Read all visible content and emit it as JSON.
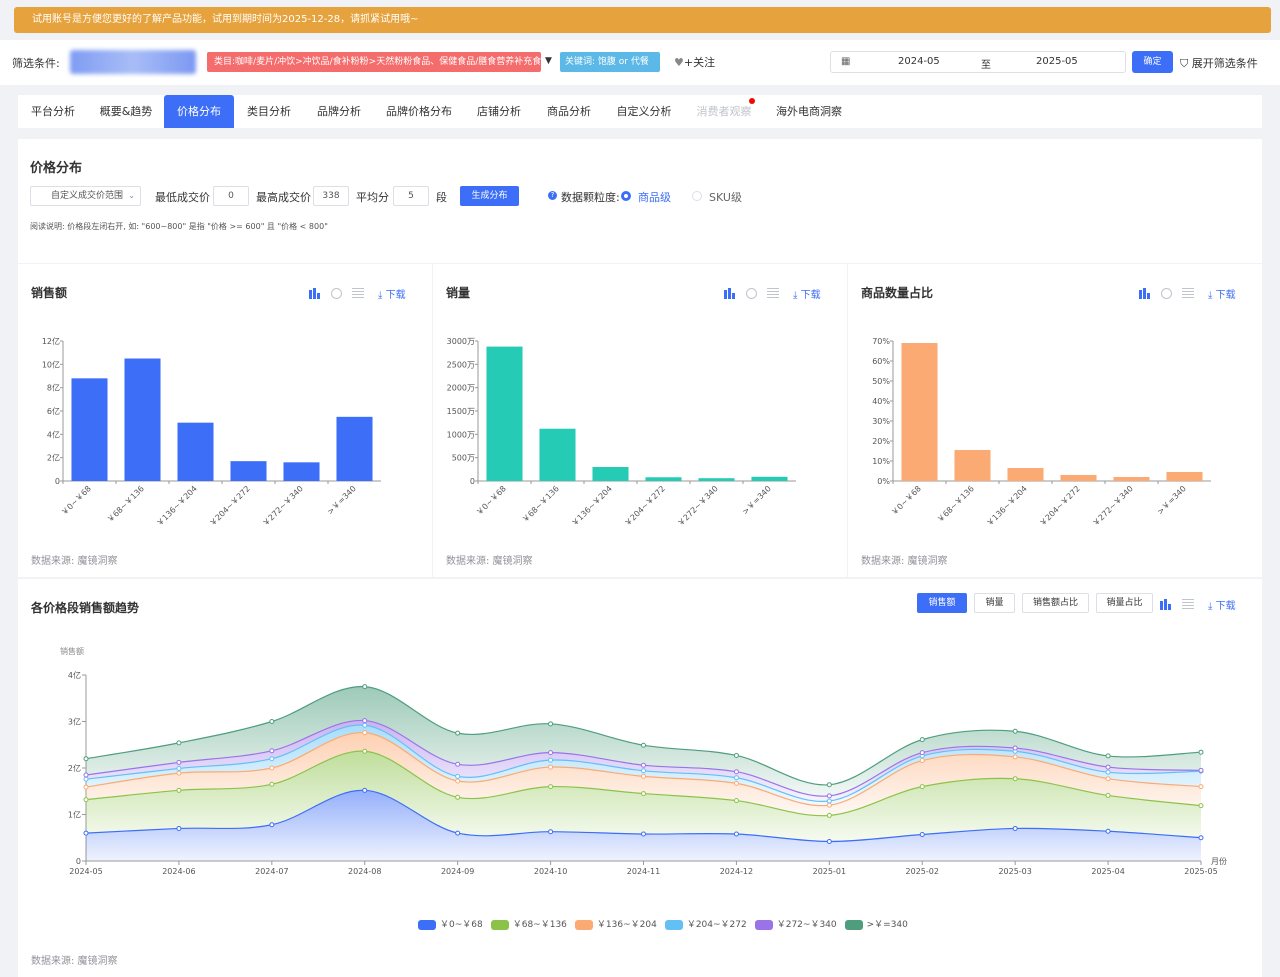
{
  "banner": {
    "text": "试用账号是方便您更好的了解产品功能，试用到期时间为2025-12-28，请抓紧试用哦~"
  },
  "filter": {
    "label": "筛选条件:",
    "category": "类目:咖啡/麦片/冲饮>冲饮品/食补粉粉>天然粉粉食品、保健食品/膳食营养补充食品",
    "keyword": "关键词: 饱腹 or 代餐",
    "follow": "+关注",
    "date_start": "2024-05",
    "date_to": "至",
    "date_end": "2025-05",
    "confirm": "确定",
    "expand": "展开筛选条件"
  },
  "tabs": [
    "平台分析",
    "概要&趋势",
    "价格分布",
    "类目分析",
    "品牌分析",
    "品牌价格分布",
    "店铺分析",
    "商品分析",
    "自定义分析",
    "消费者观察",
    "海外电商洞察"
  ],
  "price_panel": {
    "title": "价格分布",
    "range_select": "自定义成交价范围",
    "min_label": "最低成交价",
    "min_value": "0",
    "max_label": "最高成交价",
    "max_value": "338",
    "avg_label": "平均分",
    "avg_value": "5",
    "seg_label": "段",
    "generate": "生成分布",
    "granularity_label": "数据颗粒度:",
    "opt_product": "商品级",
    "opt_sku": "SKU级",
    "note": "阅读说明: 价格段左闭右开, 如: \"600~800\" 是指 \"价格 >= 600\" 且 \"价格 < 800\""
  },
  "common": {
    "download": "下载",
    "source": "数据来源: 魔镜洞察"
  },
  "cards": [
    {
      "title": "销售额"
    },
    {
      "title": "销量"
    },
    {
      "title": "商品数量占比"
    }
  ],
  "colors": {
    "primary": "#3d6ef7",
    "teal": "#25cbb5",
    "orange": "#fbaa73"
  },
  "trend": {
    "title": "各价格段销售额趋势",
    "buttons": [
      "销售额",
      "销量",
      "销售额占比",
      "销量占比"
    ],
    "ylabel": "销售额",
    "xlabel": "月份"
  },
  "chart_data": [
    {
      "type": "bar",
      "title": "销售额",
      "categories": [
        "￥0~￥68",
        "￥68~￥136",
        "￥136~￥204",
        "￥204~￥272",
        "￥272~￥340",
        ">￥=340"
      ],
      "values": [
        8.8,
        10.5,
        5.0,
        1.7,
        1.6,
        5.5
      ],
      "yticks": [
        "0",
        "2亿",
        "4亿",
        "6亿",
        "8亿",
        "10亿",
        "12亿"
      ],
      "ylim": [
        0,
        12
      ],
      "color": "#3d6ef7"
    },
    {
      "type": "bar",
      "title": "销量",
      "categories": [
        "￥0~￥68",
        "￥68~￥136",
        "￥136~￥204",
        "￥204~￥272",
        "￥272~￥340",
        ">￥=340"
      ],
      "values": [
        2880,
        1120,
        300,
        80,
        60,
        90
      ],
      "yticks": [
        "0",
        "500万",
        "1000万",
        "1500万",
        "2000万",
        "2500万",
        "3000万"
      ],
      "ylim": [
        0,
        3000
      ],
      "color": "#25cbb5"
    },
    {
      "type": "bar",
      "title": "商品数量占比",
      "categories": [
        "￥0~￥68",
        "￥68~￥136",
        "￥136~￥204",
        "￥204~￥272",
        "￥272~￥340",
        ">￥=340"
      ],
      "values": [
        69,
        15.5,
        6.5,
        3,
        2,
        4.5
      ],
      "yticks": [
        "0%",
        "10%",
        "20%",
        "30%",
        "40%",
        "50%",
        "60%",
        "70%"
      ],
      "ylim": [
        0,
        70
      ],
      "color": "#fbaa73"
    },
    {
      "type": "area",
      "title": "各价格段销售额趋势",
      "x": [
        "2024-05",
        "2024-06",
        "2024-07",
        "2024-08",
        "2024-09",
        "2024-10",
        "2024-11",
        "2024-12",
        "2025-01",
        "2025-02",
        "2025-03",
        "2025-04",
        "2025-05"
      ],
      "yticks": [
        "0",
        "1亿",
        "2亿",
        "3亿",
        "4亿"
      ],
      "ylim": [
        0,
        4
      ],
      "stacked": true,
      "series": [
        {
          "name": "￥0~￥68",
          "color": "#3d6ef7",
          "values": [
            0.6,
            0.7,
            0.78,
            1.52,
            0.6,
            0.63,
            0.58,
            0.58,
            0.42,
            0.57,
            0.7,
            0.64,
            0.5
          ]
        },
        {
          "name": "￥68~￥136",
          "color": "#8bc34a",
          "values": [
            0.72,
            0.82,
            0.87,
            0.84,
            0.77,
            0.97,
            0.87,
            0.72,
            0.56,
            1.03,
            1.07,
            0.77,
            0.69
          ]
        },
        {
          "name": "￥136~￥204",
          "color": "#fbaa73",
          "values": [
            0.27,
            0.37,
            0.35,
            0.4,
            0.35,
            0.42,
            0.37,
            0.37,
            0.22,
            0.56,
            0.47,
            0.36,
            0.41
          ]
        },
        {
          "name": "￥204~￥272",
          "color": "#63c0f5",
          "values": [
            0.17,
            0.1,
            0.2,
            0.16,
            0.1,
            0.15,
            0.12,
            0.12,
            0.09,
            0.1,
            0.12,
            0.14,
            0.33
          ]
        },
        {
          "name": "￥272~￥340",
          "color": "#9b73e8",
          "values": [
            0.09,
            0.13,
            0.17,
            0.1,
            0.26,
            0.16,
            0.12,
            0.13,
            0.11,
            0.07,
            0.07,
            0.11,
            0.02
          ]
        },
        {
          "name": ">￥=340",
          "color": "#4e9e7e",
          "values": [
            0.35,
            0.42,
            0.63,
            0.73,
            0.67,
            0.62,
            0.43,
            0.35,
            0.24,
            0.28,
            0.36,
            0.24,
            0.39
          ]
        }
      ]
    }
  ]
}
